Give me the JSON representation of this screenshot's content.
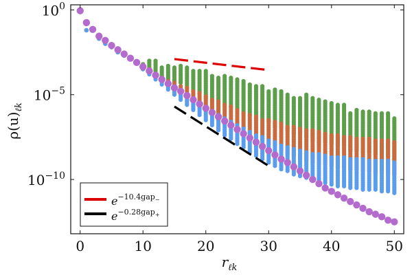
{
  "chart_data": {
    "type": "scatter",
    "title": "",
    "xlabel": "r",
    "xlabel_sub": "ℓk",
    "ylabel": "ρ(u)",
    "ylabel_sub": "ℓk",
    "xlim": [
      -1.5,
      51.5
    ],
    "ylim_log10": [
      -13.2,
      0.3
    ],
    "x_ticks": [
      0,
      10,
      20,
      30,
      40,
      50
    ],
    "y_ticks": [
      {
        "exp": 0,
        "label_base": "10",
        "label_exp": "0"
      },
      {
        "exp": -5,
        "label_base": "10",
        "label_exp": "−5"
      },
      {
        "exp": -10,
        "label_base": "10",
        "label_exp": "−10"
      }
    ],
    "grid": false,
    "colors": {
      "green": "#5d9e4a",
      "orange": "#c96b3f",
      "blue": "#5b9ded",
      "purple": "#b36ccd",
      "red_line": "#dd0000",
      "black_line": "#000000"
    },
    "series": [
      {
        "name": "green band",
        "color": "green",
        "x_range": [
          0,
          50
        ],
        "log10_high": [
          0.0,
          -1.2,
          -1.2,
          -1.7,
          -2.0,
          -2.2,
          -2.5,
          -2.7,
          -2.9,
          -3.1,
          -3.2,
          -3.0,
          -3.0,
          -3.4,
          -3.3,
          -3.4,
          -3.3,
          -3.4,
          -3.6,
          -3.6,
          -3.6,
          -3.9,
          -4.0,
          -3.9,
          -4.0,
          -4.1,
          -4.2,
          -4.4,
          -4.5,
          -4.5,
          -4.8,
          -4.7,
          -4.8,
          -5.0,
          -5.2,
          -5.2,
          -5.0,
          -5.2,
          -5.3,
          -5.4,
          -5.5,
          -5.6,
          -5.6,
          -6.1,
          -5.9,
          -6.0,
          -6.0,
          -6.1,
          -6.1,
          -6.1,
          -6.4
        ],
        "log10_low": [
          0.0,
          -1.2,
          -1.2,
          -1.7,
          -2.0,
          -2.2,
          -2.5,
          -2.7,
          -2.9,
          -3.1,
          -3.5,
          -3.5,
          -3.6,
          -3.9,
          -4.1,
          -4.2,
          -4.3,
          -4.6,
          -4.8,
          -4.9,
          -5.2,
          -5.3,
          -5.5,
          -5.6,
          -5.7,
          -5.8,
          -6.1,
          -6.2,
          -6.4,
          -6.4,
          -6.6,
          -6.9,
          -6.9,
          -7.1,
          -7.3,
          -7.3,
          -7.5,
          -7.7,
          -7.9,
          -7.8,
          -7.9,
          -8.0,
          -8.0,
          -8.3,
          -8.3,
          -8.4,
          -8.4,
          -8.5,
          -8.7,
          -8.6,
          -8.8
        ]
      },
      {
        "name": "orange band",
        "color": "orange",
        "x_range": [
          0,
          50
        ],
        "log10_high": [
          0.0,
          -1.2,
          -1.2,
          -1.7,
          -2.0,
          -2.2,
          -2.5,
          -2.7,
          -2.9,
          -3.1,
          -3.3,
          -3.5,
          -3.8,
          -4.0,
          -4.2,
          -4.3,
          -4.5,
          -4.6,
          -4.8,
          -4.9,
          -5.1,
          -5.3,
          -5.4,
          -5.6,
          -5.7,
          -5.9,
          -6.1,
          -6.2,
          -6.3,
          -6.5,
          -6.5,
          -6.6,
          -6.7,
          -6.9,
          -6.9,
          -7.0,
          -7.1,
          -7.1,
          -7.2,
          -7.3,
          -7.4,
          -7.4,
          -7.5,
          -7.5,
          -7.6,
          -7.6,
          -7.6,
          -7.7,
          -7.7,
          -7.7,
          -7.8
        ],
        "log10_low": [
          0.0,
          -1.2,
          -1.2,
          -1.7,
          -2.0,
          -2.2,
          -2.5,
          -2.7,
          -2.9,
          -3.1,
          -3.4,
          -3.7,
          -3.9,
          -4.1,
          -4.4,
          -4.6,
          -4.8,
          -5.1,
          -5.3,
          -5.5,
          -5.7,
          -5.9,
          -6.2,
          -6.4,
          -6.6,
          -6.8,
          -7.0,
          -7.3,
          -7.5,
          -7.7,
          -7.9,
          -8.0,
          -8.3,
          -8.5,
          -8.6,
          -8.8,
          -8.9,
          -9.0,
          -9.1,
          -9.1,
          -9.2,
          -9.3,
          -9.3,
          -9.4,
          -9.4,
          -9.5,
          -9.5,
          -9.6,
          -9.6,
          -9.7,
          -9.7
        ]
      },
      {
        "name": "blue band",
        "color": "blue",
        "x_range": [
          0,
          50
        ],
        "log10_high": [
          0.0,
          -1.2,
          -1.2,
          -1.7,
          -2.0,
          -2.2,
          -2.5,
          -2.7,
          -2.9,
          -3.1,
          -3.4,
          -3.7,
          -3.9,
          -4.2,
          -4.4,
          -4.6,
          -4.9,
          -5.1,
          -5.3,
          -5.5,
          -5.8,
          -6.0,
          -6.2,
          -6.4,
          -6.6,
          -6.8,
          -7.0,
          -7.2,
          -7.4,
          -7.5,
          -7.7,
          -7.8,
          -8.0,
          -8.1,
          -8.2,
          -8.3,
          -8.4,
          -8.5,
          -8.5,
          -8.6,
          -8.7,
          -8.7,
          -8.7,
          -8.8,
          -8.8,
          -8.8,
          -8.9,
          -8.9,
          -8.9,
          -8.9,
          -9.0
        ],
        "log10_low": [
          0.0,
          -1.2,
          -1.2,
          -1.7,
          -2.0,
          -2.2,
          -2.5,
          -2.7,
          -2.9,
          -3.1,
          -3.5,
          -3.8,
          -4.1,
          -4.4,
          -4.7,
          -5.0,
          -5.3,
          -5.6,
          -5.9,
          -6.2,
          -6.5,
          -6.8,
          -7.1,
          -7.4,
          -7.6,
          -7.9,
          -8.1,
          -8.4,
          -8.6,
          -8.8,
          -9.0,
          -9.2,
          -9.4,
          -9.5,
          -9.7,
          -9.8,
          -9.9,
          -10.0,
          -10.1,
          -10.2,
          -10.3,
          -10.4,
          -10.4,
          -10.5,
          -10.5,
          -10.6,
          -10.6,
          -10.6,
          -10.7,
          -10.7,
          -10.8
        ]
      },
      {
        "name": "purple envelope",
        "color": "purple",
        "x": [
          0,
          1,
          2,
          3,
          4,
          5,
          6,
          7,
          8,
          9,
          10,
          11,
          12,
          13,
          14,
          15,
          16,
          17,
          18,
          19,
          20,
          21,
          22,
          23,
          24,
          25,
          26,
          27,
          28,
          29,
          30,
          31,
          32,
          33,
          34,
          35,
          36,
          37,
          38,
          39,
          40,
          41,
          42,
          43,
          44,
          45,
          46,
          47,
          48,
          49,
          50
        ],
        "log10_y": [
          -0.05,
          -0.75,
          -1.15,
          -1.55,
          -1.8,
          -2.1,
          -2.35,
          -2.6,
          -2.85,
          -3.1,
          -3.35,
          -3.6,
          -3.85,
          -4.1,
          -4.35,
          -4.6,
          -4.8,
          -5.05,
          -5.3,
          -5.55,
          -5.8,
          -6.05,
          -6.3,
          -6.55,
          -6.8,
          -7.05,
          -7.3,
          -7.55,
          -7.8,
          -8.05,
          -8.3,
          -8.55,
          -8.8,
          -9.0,
          -9.25,
          -9.5,
          -9.75,
          -10.0,
          -10.25,
          -10.5,
          -10.7,
          -10.9,
          -11.1,
          -11.3,
          -11.5,
          -11.7,
          -11.9,
          -12.05,
          -12.2,
          -12.4,
          -12.5
        ]
      }
    ],
    "reference_lines": [
      {
        "name": "red dashed",
        "color": "red_line",
        "x": [
          15,
          30
        ],
        "log10_y": [
          -2.9,
          -3.55
        ]
      },
      {
        "name": "black dashed",
        "color": "black_line",
        "x": [
          15,
          30
        ],
        "log10_y": [
          -5.7,
          -9.2
        ]
      }
    ],
    "legend": {
      "position": "bottom-left",
      "entries": [
        {
          "color": "red_line",
          "base": "e",
          "exp": "−10.4gap",
          "sub": "−"
        },
        {
          "color": "black_line",
          "base": "e",
          "exp": "−0.28gap",
          "sub": "+"
        }
      ]
    }
  }
}
